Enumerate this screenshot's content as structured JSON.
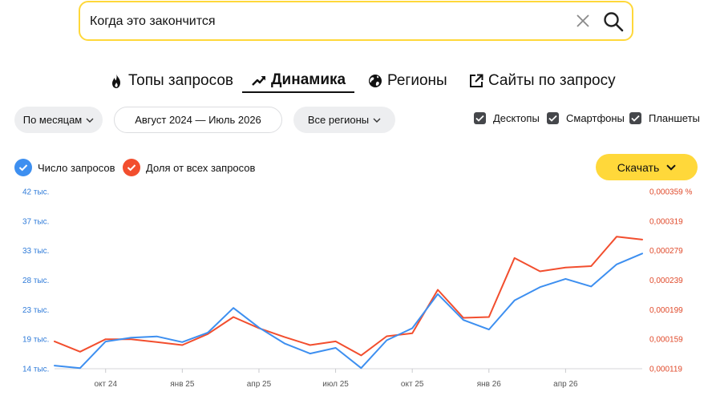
{
  "search": {
    "value": "Когда это закончится"
  },
  "tabs": [
    {
      "label": "Топы запросов",
      "icon": "fire-icon"
    },
    {
      "label": "Динамика",
      "icon": "trend-icon",
      "active": true
    },
    {
      "label": "Регионы",
      "icon": "globe-icon"
    },
    {
      "label": "Сайты по запросу",
      "icon": "external-link-icon"
    }
  ],
  "filters": {
    "period": "По месяцам",
    "range": "Август 2024 — Июль 2026",
    "regions": "Все регионы"
  },
  "devices": [
    {
      "label": "Десктопы",
      "checked": true
    },
    {
      "label": "Смартфоны",
      "checked": true
    },
    {
      "label": "Планшеты",
      "checked": true
    }
  ],
  "legend": [
    {
      "label": "Число запросов",
      "color": "#3d8ff0"
    },
    {
      "label": "Доля от всех запросов",
      "color": "#f24e2e"
    }
  ],
  "download_label": "Скачать",
  "chart_data": {
    "type": "line",
    "x": [
      "2024-08",
      "2024-09",
      "2024-10",
      "2024-11",
      "2024-12",
      "2025-01",
      "2025-02",
      "2025-03",
      "2025-04",
      "2025-05",
      "2025-06",
      "2025-07",
      "2025-08",
      "2025-09",
      "2025-10",
      "2025-11",
      "2025-12",
      "2026-01",
      "2026-02",
      "2026-03",
      "2026-04",
      "2026-05",
      "2026-06",
      "2026-07"
    ],
    "x_tick_labels": [
      {
        "x": "2024-10",
        "label": "окт 24"
      },
      {
        "x": "2025-01",
        "label": "янв 25"
      },
      {
        "x": "2025-04",
        "label": "апр 25"
      },
      {
        "x": "2025-07",
        "label": "июл 25"
      },
      {
        "x": "2025-10",
        "label": "окт 25"
      },
      {
        "x": "2026-01",
        "label": "янв 26"
      },
      {
        "x": "2026-04",
        "label": "апр 26"
      }
    ],
    "y_left": {
      "tick_labels": [
        "14 тыс.",
        "19 тыс.",
        "23 тыс.",
        "28 тыс.",
        "33 тыс.",
        "37 тыс.",
        "42 тыс."
      ],
      "tick_values": [
        14000,
        18700,
        23300,
        28000,
        32700,
        37300,
        42000
      ],
      "range": [
        14000,
        42000
      ]
    },
    "y_right": {
      "tick_labels": [
        "0,000119",
        "0,000159",
        "0,000199",
        "0,000239",
        "0,000279",
        "0,000319",
        "0,000359 %"
      ],
      "tick_values": [
        0.000119,
        0.000159,
        0.000199,
        0.000239,
        0.000279,
        0.000319,
        0.000359
      ],
      "range": [
        0.000119,
        0.000359
      ]
    },
    "series": [
      {
        "name": "Число запросов",
        "axis": "left",
        "color": "#3d8ff0",
        "values": [
          14500,
          14100,
          18300,
          18900,
          19100,
          18200,
          19700,
          23600,
          20500,
          18000,
          16400,
          17300,
          14100,
          18500,
          20400,
          25800,
          21700,
          20200,
          24800,
          26900,
          28200,
          27000,
          30500,
          32200
        ]
      },
      {
        "name": "Доля от всех запросов",
        "axis": "right",
        "color": "#f24e2e",
        "values": [
          0.000156,
          0.000142,
          0.000159,
          0.000159,
          0.000155,
          0.000151,
          0.000166,
          0.000189,
          0.000174,
          0.000162,
          0.000151,
          0.000156,
          0.000137,
          0.000163,
          0.000167,
          0.000226,
          0.000188,
          0.000189,
          0.000269,
          0.000251,
          0.000256,
          0.000258,
          0.000298,
          0.000294
        ]
      }
    ]
  }
}
